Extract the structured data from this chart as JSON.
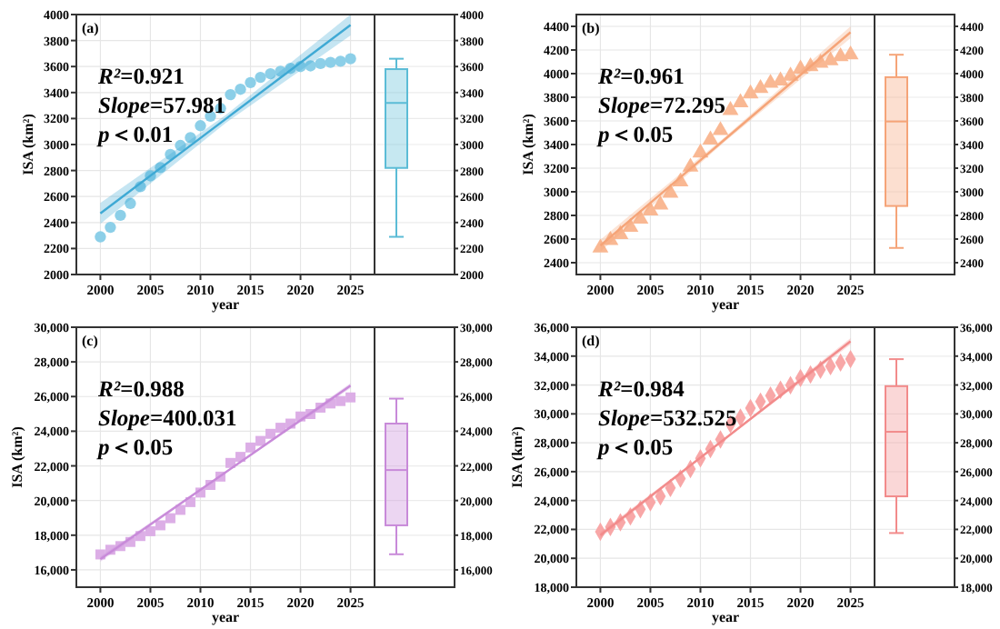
{
  "chart_data": [
    {
      "type": "scatter",
      "xlabel": "year",
      "ylabel": "ISA (km²)",
      "annotations": [
        "(a)",
        "R²=0.921",
        "Slope=57.981",
        "p＜0.01"
      ],
      "x": [
        2000,
        2001,
        2002,
        2003,
        2004,
        2005,
        2006,
        2007,
        2008,
        2009,
        2010,
        2011,
        2012,
        2013,
        2014,
        2015,
        2016,
        2017,
        2018,
        2019,
        2020,
        2021,
        2022,
        2023,
        2024,
        2025
      ],
      "xlim": [
        1997.6,
        2027.4
      ],
      "xticks": [
        2000,
        2005,
        2010,
        2015,
        2020,
        2025
      ],
      "ylim": [
        2000,
        4000
      ],
      "yticks": [
        2000,
        2200,
        2400,
        2600,
        2800,
        3000,
        3200,
        3400,
        3600,
        3800,
        4000
      ],
      "grid": true,
      "series": [
        {
          "type": "scatter",
          "marker": "circle",
          "color": "#8ccfe8",
          "values": [
            2290,
            2363,
            2455,
            2547,
            2676,
            2759,
            2823,
            2924,
            2993,
            3053,
            3145,
            3218,
            3278,
            3384,
            3425,
            3476,
            3517,
            3545,
            3563,
            3586,
            3600,
            3605,
            3623,
            3632,
            3641,
            3660
          ]
        },
        {
          "type": "line",
          "color": "#3fa9d4",
          "line_style": "solid",
          "x": [
            2000,
            2012.5,
            2025
          ],
          "values": [
            2470,
            3195,
            3920
          ],
          "lower": [
            2390,
            3165,
            3840
          ],
          "upper": [
            2550,
            3225,
            4000
          ]
        }
      ]
    },
    {
      "type": "box",
      "categories": [
        null
      ],
      "ylim": [
        2000,
        4000
      ],
      "yticks": [
        2000,
        2200,
        2400,
        2600,
        2800,
        3000,
        3200,
        3400,
        3600,
        3800,
        4000
      ],
      "grid": "y",
      "color": "#5bbcd6",
      "boxes": [
        {
          "low": 2290,
          "q1": 2820,
          "median": 3320,
          "q3": 3580,
          "high": 3660
        }
      ]
    },
    {
      "type": "scatter",
      "xlabel": "year",
      "ylabel": "ISA (km²)",
      "annotations": [
        "(b)",
        "R²=0.961",
        "Slope=72.295",
        "p＜0.05"
      ],
      "x": [
        2000,
        2001,
        2002,
        2003,
        2004,
        2005,
        2006,
        2007,
        2008,
        2009,
        2010,
        2011,
        2012,
        2013,
        2014,
        2015,
        2016,
        2017,
        2018,
        2019,
        2020,
        2021,
        2022,
        2023,
        2024,
        2025
      ],
      "xlim": [
        1997.6,
        2027.4
      ],
      "xticks": [
        2000,
        2005,
        2010,
        2015,
        2020,
        2025
      ],
      "ylim": [
        2300,
        4500
      ],
      "yticks": [
        2400,
        2600,
        2800,
        3000,
        3200,
        3400,
        3600,
        3800,
        4000,
        4200,
        4400
      ],
      "grid": true,
      "series": [
        {
          "type": "scatter",
          "marker": "triangle",
          "color": "#f9b893",
          "values": [
            2525,
            2590,
            2640,
            2700,
            2770,
            2840,
            2890,
            2990,
            3085,
            3210,
            3330,
            3440,
            3520,
            3690,
            3755,
            3830,
            3875,
            3920,
            3940,
            3980,
            4040,
            4060,
            4090,
            4110,
            4145,
            4160
          ]
        },
        {
          "type": "line",
          "color": "#f5a478",
          "line_style": "solid",
          "x": [
            2000,
            2012.5,
            2025
          ],
          "values": [
            2545,
            3448,
            4350
          ],
          "lower": [
            2495,
            3428,
            4300
          ],
          "upper": [
            2595,
            3468,
            4400
          ]
        }
      ]
    },
    {
      "type": "box",
      "categories": [
        null
      ],
      "ylim": [
        2300,
        4500
      ],
      "yticks": [
        2400,
        2600,
        2800,
        3000,
        3200,
        3400,
        3600,
        3800,
        4000,
        4200,
        4400
      ],
      "grid": "y",
      "color": "#f5a478",
      "boxes": [
        {
          "low": 2525,
          "q1": 2880,
          "median": 3595,
          "q3": 3970,
          "high": 4160
        }
      ]
    },
    {
      "type": "scatter",
      "xlabel": "year",
      "ylabel": "ISA (km²)",
      "annotations": [
        "(c)",
        "R²=0.988",
        "Slope=400.031",
        "p＜0.05"
      ],
      "x": [
        2000,
        2001,
        2002,
        2003,
        2004,
        2005,
        2006,
        2007,
        2008,
        2009,
        2010,
        2011,
        2012,
        2013,
        2014,
        2015,
        2016,
        2017,
        2018,
        2019,
        2020,
        2021,
        2022,
        2023,
        2024,
        2025
      ],
      "xlim": [
        1997.6,
        2027.4
      ],
      "xticks": [
        2000,
        2005,
        2010,
        2015,
        2020,
        2025
      ],
      "ylim": [
        15000,
        30000
      ],
      "yticks": [
        {
          "value": 16000,
          "label": "16,000"
        },
        {
          "value": 18000,
          "label": "18,000"
        },
        {
          "value": 20000,
          "label": "20,000"
        },
        {
          "value": 22000,
          "label": "22,000"
        },
        {
          "value": 24000,
          "label": "24,000"
        },
        {
          "value": 26000,
          "label": "26,000"
        },
        {
          "value": 28000,
          "label": "28,000"
        },
        {
          "value": 30000,
          "label": "30,000"
        }
      ],
      "grid": true,
      "series": [
        {
          "type": "scatter",
          "marker": "square",
          "color": "#dcaee6",
          "values": [
            16890,
            17160,
            17370,
            17610,
            17950,
            18230,
            18570,
            18980,
            19460,
            19910,
            20460,
            20900,
            21380,
            22170,
            22520,
            23060,
            23440,
            23850,
            24200,
            24440,
            24850,
            24990,
            25360,
            25600,
            25740,
            25950
          ]
        },
        {
          "type": "line",
          "color": "#c88ad9",
          "line_style": "solid",
          "x": [
            2000,
            2012.5,
            2025
          ],
          "values": [
            16620,
            21625,
            26630
          ],
          "lower": [
            16470,
            21575,
            26480
          ],
          "upper": [
            16770,
            21675,
            26780
          ]
        }
      ]
    },
    {
      "type": "box",
      "categories": [
        null
      ],
      "ylim": [
        15000,
        30000
      ],
      "yticks": [
        {
          "value": 16000,
          "label": "16,000"
        },
        {
          "value": 18000,
          "label": "18,000"
        },
        {
          "value": 20000,
          "label": "20,000"
        },
        {
          "value": 22000,
          "label": "22,000"
        },
        {
          "value": 24000,
          "label": "24,000"
        },
        {
          "value": 26000,
          "label": "26,000"
        },
        {
          "value": 28000,
          "label": "28,000"
        },
        {
          "value": 30000,
          "label": "30,000"
        }
      ],
      "grid": "y",
      "color": "#c88ad9",
      "boxes": [
        {
          "low": 16900,
          "q1": 18570,
          "median": 21760,
          "q3": 24440,
          "high": 25880
        }
      ]
    },
    {
      "type": "scatter",
      "xlabel": "year",
      "ylabel": "ISA (km²)",
      "annotations": [
        "(d)",
        "R²=0.984",
        "Slope=532.525",
        "p＜0.05"
      ],
      "x": [
        2000,
        2001,
        2002,
        2003,
        2004,
        2005,
        2006,
        2007,
        2008,
        2009,
        2010,
        2011,
        2012,
        2013,
        2014,
        2015,
        2016,
        2017,
        2018,
        2019,
        2020,
        2021,
        2022,
        2023,
        2024,
        2025
      ],
      "xlim": [
        1997.6,
        2027.4
      ],
      "xticks": [
        2000,
        2005,
        2010,
        2015,
        2020,
        2025
      ],
      "ylim": [
        18000,
        36000
      ],
      "yticks": [
        {
          "value": 18000,
          "label": "18,000"
        },
        {
          "value": 20000,
          "label": "20,000"
        },
        {
          "value": 22000,
          "label": "22,000"
        },
        {
          "value": 24000,
          "label": "24,000"
        },
        {
          "value": 26000,
          "label": "26,000"
        },
        {
          "value": 28000,
          "label": "28,000"
        },
        {
          "value": 30000,
          "label": "30,000"
        },
        {
          "value": 32000,
          "label": "32,000"
        },
        {
          "value": 34000,
          "label": "34,000"
        },
        {
          "value": 36000,
          "label": "36,000"
        }
      ],
      "grid": true,
      "series": [
        {
          "type": "scatter",
          "marker": "diamond",
          "color": "#f8a7a7",
          "values": [
            21840,
            22170,
            22490,
            22900,
            23390,
            23880,
            24290,
            24870,
            25520,
            26180,
            26920,
            27570,
            28230,
            29290,
            29740,
            30400,
            30850,
            31260,
            31670,
            31990,
            32480,
            32730,
            33060,
            33300,
            33550,
            33790
          ]
        },
        {
          "type": "line",
          "color": "#f28b8b",
          "line_style": "solid",
          "x": [
            2000,
            2012.5,
            2025
          ],
          "values": [
            21600,
            28310,
            35020
          ],
          "lower": [
            21400,
            28250,
            34800
          ],
          "upper": [
            21800,
            28370,
            35240
          ]
        }
      ]
    },
    {
      "type": "box",
      "categories": [
        null
      ],
      "ylim": [
        18000,
        36000
      ],
      "yticks": [
        {
          "value": 18000,
          "label": "18,000"
        },
        {
          "value": 20000,
          "label": "20,000"
        },
        {
          "value": 22000,
          "label": "22,000"
        },
        {
          "value": 24000,
          "label": "24,000"
        },
        {
          "value": 26000,
          "label": "26,000"
        },
        {
          "value": 28000,
          "label": "28,000"
        },
        {
          "value": 30000,
          "label": "30,000"
        },
        {
          "value": 32000,
          "label": "32,000"
        },
        {
          "value": 34000,
          "label": "34,000"
        },
        {
          "value": 36000,
          "label": "36,000"
        }
      ],
      "grid": "y",
      "color": "#f28b8b",
      "boxes": [
        {
          "low": 21750,
          "q1": 24290,
          "median": 28760,
          "q3": 31920,
          "high": 33790
        }
      ]
    }
  ]
}
